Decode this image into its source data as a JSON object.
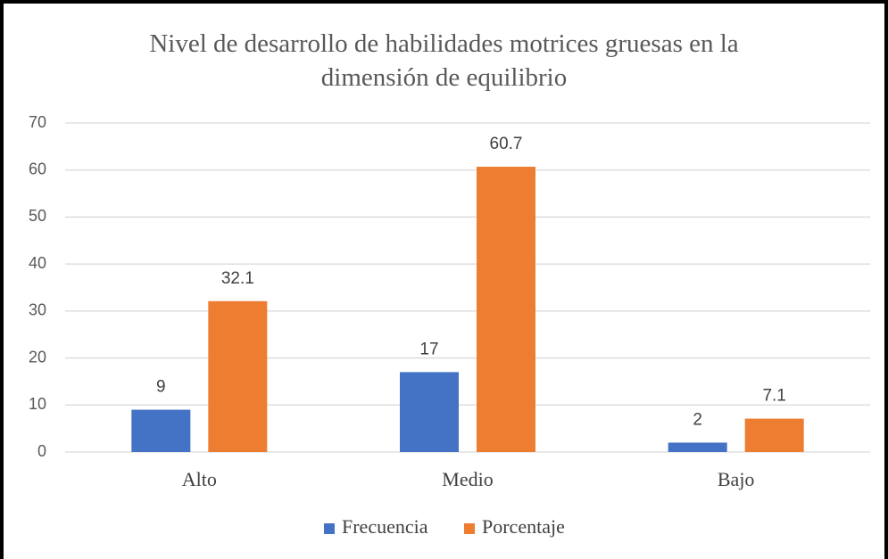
{
  "chart_data": {
    "type": "bar",
    "title": "Nivel de desarrollo de habilidades motrices gruesas en la dimensión de equilibrio",
    "categories": [
      "Alto",
      "Medio",
      "Bajo"
    ],
    "series": [
      {
        "name": "Frecuencia",
        "color": "#4472c4",
        "values": [
          9,
          17,
          2
        ]
      },
      {
        "name": "Porcentaje",
        "color": "#ed7d31",
        "values": [
          32.1,
          60.7,
          7.1
        ]
      }
    ],
    "ylim": [
      0,
      70
    ],
    "yticks": [
      0,
      10,
      20,
      30,
      40,
      50,
      60,
      70
    ],
    "grid": true,
    "legend": "bottom"
  }
}
